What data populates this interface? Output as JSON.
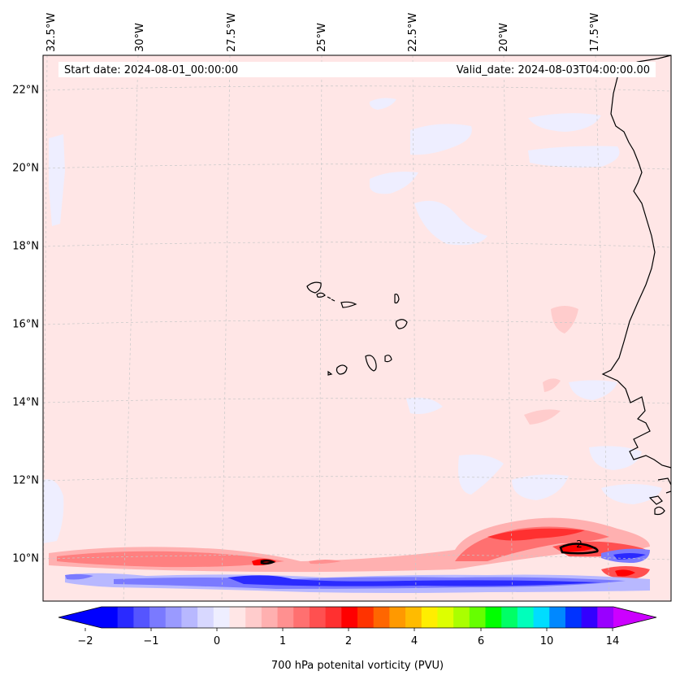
{
  "map": {
    "header": {
      "start_date": "Start date: 2024-08-01_00:00:00",
      "valid_date": "Valid_date: 2024-08-03T04:00:00.00"
    },
    "lon_labels": [
      "32.5°W",
      "30°W",
      "27.5°W",
      "25°W",
      "22.5°W",
      "20°W",
      "17.5°W"
    ],
    "lat_labels": [
      "22°N",
      "20°N",
      "18°N",
      "16°N",
      "14°N",
      "12°N",
      "10°N"
    ],
    "contour_label": "2",
    "colors": {
      "background_field": "#ffe6e6",
      "negative_weak": "#eef0ff",
      "coastline": "#000000",
      "gridline": "#c8c8c8"
    }
  },
  "colorbar": {
    "title": "700 hPa potenital vorticity (PVU)",
    "tick_labels": [
      "−2",
      "−1",
      "0",
      "1",
      "2",
      "4",
      "6",
      "10",
      "14"
    ],
    "colors": [
      "#0000ff",
      "#2a2aff",
      "#5555ff",
      "#7a7aff",
      "#9a9aff",
      "#b8b8ff",
      "#d8d8ff",
      "#eeeeff",
      "#ffe6e6",
      "#ffcccc",
      "#ffb0b0",
      "#ff9090",
      "#ff7070",
      "#ff5050",
      "#ff3030",
      "#ff0000",
      "#ff3300",
      "#ff6600",
      "#ff9900",
      "#ffbb00",
      "#ffee00",
      "#ddff00",
      "#aaff00",
      "#66ff00",
      "#00ff00",
      "#00ff66",
      "#00ffbb",
      "#00ddff",
      "#0088ff",
      "#0033ff",
      "#3300ff",
      "#9900ff"
    ],
    "under_color": "#0000ff",
    "over_color": "#cc00ff"
  }
}
